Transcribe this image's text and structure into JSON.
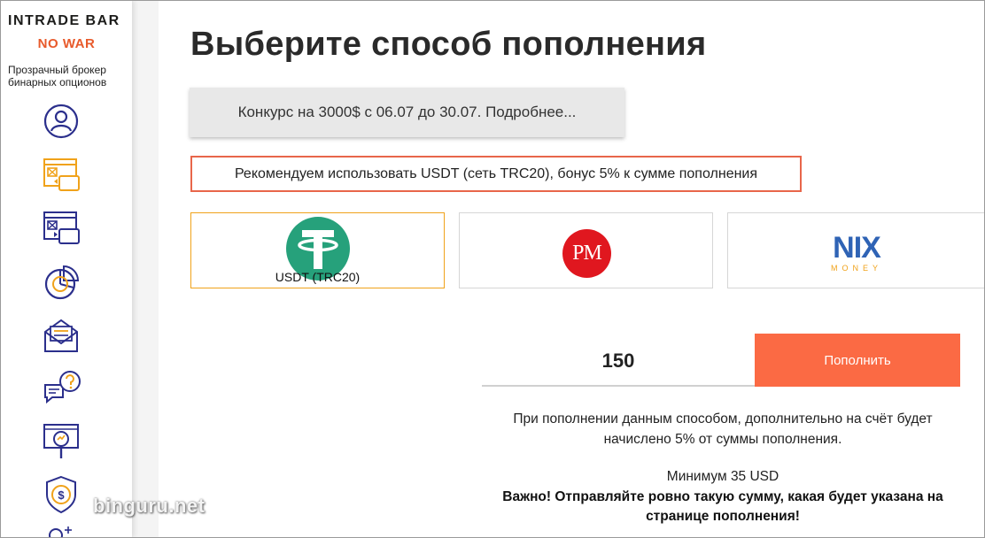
{
  "sidebar": {
    "logo": "INTRADE BAR",
    "no_war": "NO WAR",
    "tagline": "Прозрачный брокер бинарных опционов",
    "items": [
      {
        "icon": "user-circle-icon"
      },
      {
        "icon": "deposit-wallet-icon",
        "active": true
      },
      {
        "icon": "withdraw-wallet-icon"
      },
      {
        "icon": "chart-pie-icon"
      },
      {
        "icon": "envelope-icon"
      },
      {
        "icon": "help-chat-icon"
      },
      {
        "icon": "analytics-search-icon"
      },
      {
        "icon": "dollar-shield-icon"
      },
      {
        "icon": "user-add-icon"
      }
    ]
  },
  "main": {
    "title": "Выберите способ пополнения",
    "contest_banner": "Конкурс на 3000$ с 06.07 до 30.07. Подробнее...",
    "recommend_notice": "Рекомендуем использовать USDT (сеть TRC20), бонус 5% к сумме пополнения",
    "methods": [
      {
        "name": "usdt",
        "label": "USDT (TRC20)",
        "selected": true
      },
      {
        "name": "perfect-money",
        "logo_text": "PM"
      },
      {
        "name": "nix-money",
        "logo_text": "NIX",
        "logo_sub": "MONEY"
      }
    ],
    "amount": "150",
    "deposit_button": "Пополнить",
    "info_line1": "При пополнении данным способом, дополнительно на счёт будет",
    "info_line2": "начислено 5% от суммы пополнения.",
    "minimum": "Минимум 35 USD",
    "important_line1": "Важно! Отправляйте ровно такую сумму, какая будет указана на",
    "important_line2": "странице пополнения!"
  },
  "watermark": "binguru.net",
  "colors": {
    "accent": "#fb6a44",
    "notice_border": "#e8664a",
    "selected_border": "#f0a21a",
    "icon_blue": "#2b2f8c",
    "icon_orange": "#f0a21a",
    "usdt_green": "#26a17b",
    "pm_red": "#e0171f",
    "nix_blue": "#2f63b5"
  }
}
